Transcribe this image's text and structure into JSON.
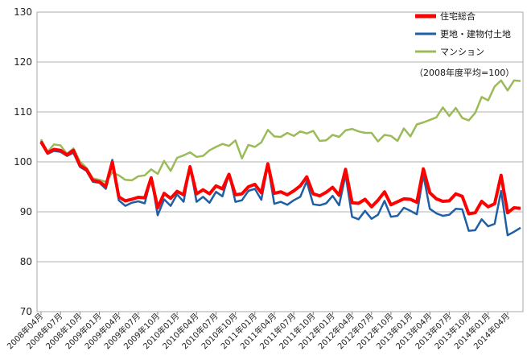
{
  "chart_data": {
    "type": "line",
    "title": "",
    "xlabel": "",
    "ylabel": "",
    "ylim": [
      70,
      130
    ],
    "yticks": [
      70,
      80,
      90,
      100,
      110,
      120,
      130
    ],
    "grid": true,
    "legend_position": "top-right",
    "note": "（2008年度平均=100）",
    "x_tick_labels": [
      "2008年04月",
      "2008年07月",
      "2008年10月",
      "2009年01月",
      "2009年04月",
      "2009年07月",
      "2009年10月",
      "2010年01月",
      "2010年04月",
      "2010年07月",
      "2010年10月",
      "2011年01月",
      "2011年04月",
      "2011年07月",
      "2011年10月",
      "2012年01月",
      "2012年04月",
      "2012年07月",
      "2012年10月",
      "2013年01月",
      "2013年04月",
      "2013年07月",
      "2013年10月",
      "2014年01月",
      "2014年04月"
    ],
    "series": [
      {
        "name": "住宅総合",
        "color": "#ff0000",
        "values": [
          104.0,
          101.8,
          102.5,
          102.3,
          101.4,
          102.3,
          99.3,
          98.5,
          96.3,
          96.0,
          95.1,
          100.0,
          93.0,
          92.2,
          92.5,
          92.9,
          92.8,
          96.8,
          90.8,
          93.7,
          92.7,
          94.1,
          93.4,
          99.0,
          93.6,
          94.4,
          93.6,
          95.2,
          94.6,
          97.5,
          93.4,
          93.6,
          95.0,
          95.5,
          93.8,
          99.6,
          93.7,
          94.0,
          93.4,
          94.2,
          95.2,
          97.0,
          93.6,
          93.2,
          93.9,
          94.9,
          93.3,
          98.5,
          91.8,
          91.7,
          92.5,
          91.0,
          92.3,
          94.0,
          91.4,
          92.0,
          92.6,
          92.5,
          91.9,
          98.6,
          93.8,
          92.6,
          92.1,
          92.2,
          93.6,
          93.1,
          89.6,
          89.8,
          92.1,
          91.0,
          91.6,
          97.3,
          89.8,
          90.8,
          90.7
        ]
      },
      {
        "name": "更地・建物付土地",
        "color": "#1f5fa6",
        "values": [
          104.2,
          101.6,
          102.2,
          102.0,
          101.2,
          101.8,
          99.0,
          98.2,
          96.0,
          95.8,
          94.6,
          100.4,
          92.3,
          91.2,
          91.8,
          92.1,
          91.7,
          96.9,
          89.3,
          92.5,
          91.2,
          93.5,
          92.0,
          99.2,
          92.0,
          93.0,
          91.8,
          94.0,
          93.1,
          97.6,
          92.0,
          92.3,
          94.2,
          94.6,
          92.4,
          99.4,
          91.6,
          92.0,
          91.4,
          92.3,
          93.0,
          96.1,
          91.5,
          91.3,
          91.7,
          93.2,
          91.3,
          97.4,
          89.0,
          88.5,
          90.2,
          88.6,
          89.4,
          92.2,
          89.0,
          89.2,
          90.8,
          90.2,
          89.5,
          97.4,
          90.6,
          89.7,
          89.2,
          89.4,
          90.6,
          90.5,
          86.2,
          86.3,
          88.5,
          87.1,
          87.6,
          94.2,
          85.3,
          86.0,
          86.8
        ]
      },
      {
        "name": "マンション",
        "color": "#9bbb59",
        "values": [
          104.5,
          102.0,
          103.5,
          103.3,
          101.6,
          102.7,
          100.1,
          98.8,
          96.7,
          96.4,
          96.0,
          97.9,
          97.3,
          96.4,
          96.3,
          97.1,
          97.3,
          98.5,
          97.6,
          100.2,
          98.2,
          100.8,
          101.3,
          101.9,
          101.0,
          101.2,
          102.3,
          103.0,
          103.6,
          103.2,
          104.3,
          100.7,
          103.4,
          103.0,
          103.9,
          106.4,
          105.1,
          105.0,
          105.8,
          105.2,
          106.1,
          105.7,
          106.2,
          104.2,
          104.3,
          105.4,
          105.0,
          106.3,
          106.6,
          106.1,
          105.8,
          105.8,
          104.1,
          105.4,
          105.2,
          104.2,
          106.7,
          105.1,
          107.5,
          107.9,
          108.4,
          108.9,
          110.9,
          109.2,
          110.8,
          108.8,
          108.3,
          109.8,
          113.0,
          112.3,
          115.1,
          116.3,
          114.3,
          116.3,
          116.2
        ]
      }
    ]
  }
}
